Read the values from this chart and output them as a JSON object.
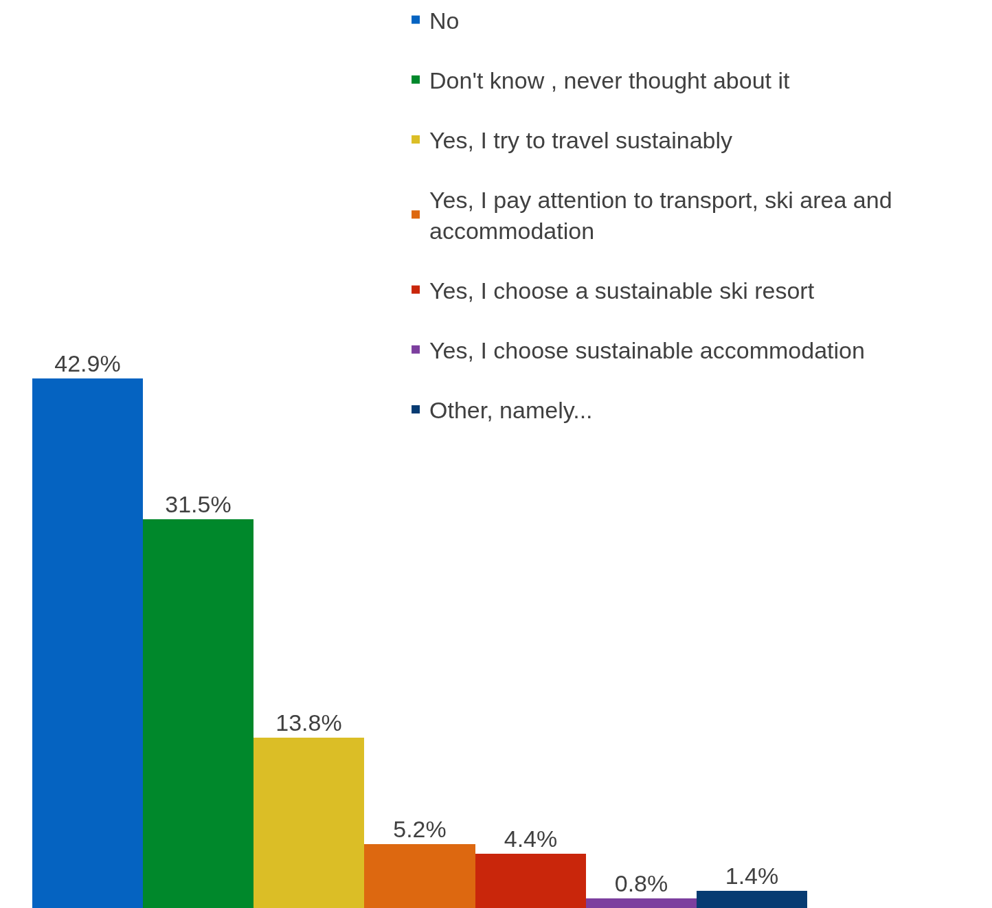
{
  "chart_data": {
    "type": "bar",
    "categories": [
      null
    ],
    "ylim": [
      0,
      73.6
    ],
    "tick_labels": false,
    "grid": false,
    "legend": "top right",
    "series": [
      {
        "name": "No",
        "color": "#0563c1",
        "values": [
          42.9
        ],
        "value_labels": [
          "42.9%"
        ]
      },
      {
        "name": "Don't know , never thought about it",
        "color": "#00882b",
        "values": [
          31.5
        ],
        "value_labels": [
          "31.5%"
        ]
      },
      {
        "name": "Yes, I try to travel sustainably",
        "color": "#dbbe26",
        "values": [
          13.8
        ],
        "value_labels": [
          "13.8%"
        ]
      },
      {
        "name": "Yes, I pay attention to transport, ski area and accommodation",
        "color": "#dd6810",
        "values": [
          5.2
        ],
        "value_labels": [
          "5.2%"
        ]
      },
      {
        "name": "Yes, I choose a sustainable ski resort",
        "color": "#c9260b",
        "values": [
          4.4
        ],
        "value_labels": [
          "4.4%"
        ]
      },
      {
        "name": "Yes, I choose sustainable accommodation",
        "color": "#7c3f9e",
        "values": [
          0.8
        ],
        "value_labels": [
          "0.8%"
        ]
      },
      {
        "name": "Other, namely...",
        "color": "#073b72",
        "values": [
          1.4
        ],
        "value_labels": [
          "1.4%"
        ]
      }
    ]
  }
}
